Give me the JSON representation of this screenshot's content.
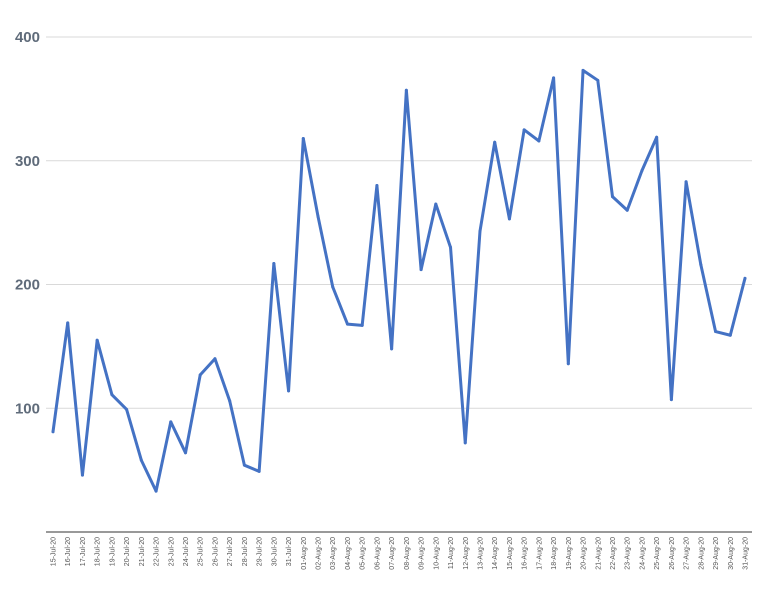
{
  "chart_data": {
    "type": "line",
    "title": "",
    "xlabel": "",
    "ylabel": "",
    "ylim": [
      0,
      400
    ],
    "yticks": [
      100,
      200,
      300,
      400
    ],
    "grid": "horizontal",
    "legend": "none",
    "categories": [
      "15-Jul-20",
      "16-Jul-20",
      "17-Jul-20",
      "18-Jul-20",
      "19-Jul-20",
      "20-Jul-20",
      "21-Jul-20",
      "22-Jul-20",
      "23-Jul-20",
      "24-Jul-20",
      "25-Jul-20",
      "26-Jul-20",
      "27-Jul-20",
      "28-Jul-20",
      "29-Jul-20",
      "30-Jul-20",
      "31-Jul-20",
      "01-Aug-20",
      "02-Aug-20",
      "03-Aug-20",
      "04-Aug-20",
      "05-Aug-20",
      "06-Aug-20",
      "07-Aug-20",
      "08-Aug-20",
      "09-Aug-20",
      "10-Aug-20",
      "11-Aug-20",
      "12-Aug-20",
      "13-Aug-20",
      "14-Aug-20",
      "15-Aug-20",
      "16-Aug-20",
      "17-Aug-20",
      "18-Aug-20",
      "19-Aug-20",
      "20-Aug-20",
      "21-Aug-20",
      "22-Aug-20",
      "23-Aug-20",
      "24-Aug-20",
      "25-Aug-20",
      "26-Aug-20",
      "27-Aug-20",
      "28-Aug-20",
      "29-Aug-20",
      "30-Aug-20",
      "31-Aug-20"
    ],
    "series": [
      {
        "color": "#4472c4",
        "values": [
          81,
          169,
          46,
          155,
          111,
          99,
          58,
          33,
          89,
          64,
          127,
          140,
          106,
          54,
          49,
          217,
          114,
          318,
          255,
          198,
          168,
          167,
          280,
          148,
          357,
          212,
          265,
          230,
          72,
          243,
          315,
          253,
          325,
          316,
          367,
          136,
          373,
          365,
          271,
          260,
          292,
          319,
          107,
          283,
          216,
          162,
          159,
          205
        ]
      }
    ]
  }
}
